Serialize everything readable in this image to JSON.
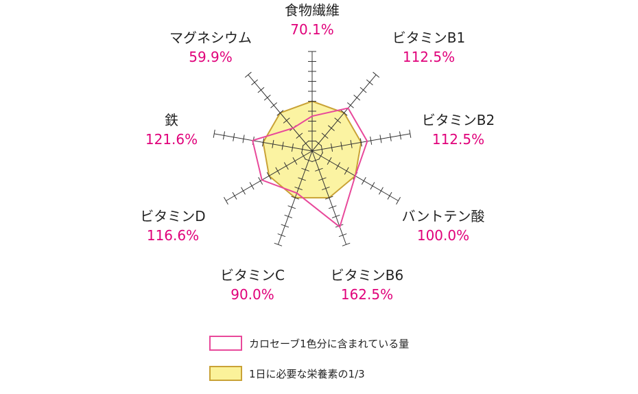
{
  "chart_data": {
    "type": "radar",
    "axes": [
      {
        "name": "食物繊維",
        "value_text": "70.1%",
        "value": 70.1
      },
      {
        "name": "ビタミンB1",
        "value_text": "112.5%",
        "value": 112.5
      },
      {
        "name": "ビタミンB2",
        "value_text": "112.5%",
        "value": 112.5
      },
      {
        "name": "バントテン酸",
        "value_text": "100.0%",
        "value": 100.0
      },
      {
        "name": "ビタミンB6",
        "value_text": "162.5%",
        "value": 162.5
      },
      {
        "name": "ビタミンC",
        "value_text": "90.0%",
        "value": 90.0
      },
      {
        "name": "ビタミンD",
        "value_text": "116.6%",
        "value": 116.6
      },
      {
        "name": "鉄",
        "value_text": "121.6%",
        "value": 121.6
      },
      {
        "name": "マグネシウム",
        "value_text": "59.9%",
        "value": 59.9
      }
    ],
    "reference_value": 100,
    "rmax": 200,
    "series": [
      {
        "name": "カロセーブ1色分に含まれている量",
        "color": "#e8489a",
        "fill": "none"
      },
      {
        "name": "1日に必要な栄養素の1/3",
        "color": "#c9a236",
        "fill": "#fbf29a"
      }
    ]
  },
  "colors": {
    "axis": "#333333",
    "value_text": "#e0007a",
    "label_text": "#222222"
  }
}
